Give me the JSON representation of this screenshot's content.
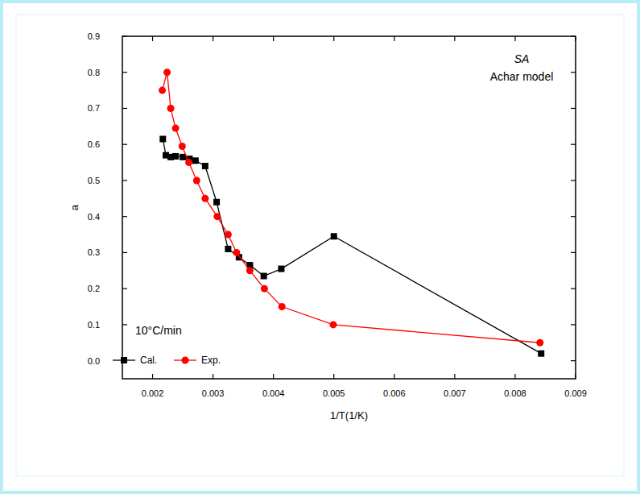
{
  "chart_data": {
    "type": "line",
    "x_label": "1/T(1/K)",
    "y_label": "a",
    "annotations": [
      "SA",
      "Achar model",
      "10°C/min"
    ],
    "xlim": [
      0.0015,
      0.009
    ],
    "xticks": [
      0.002,
      0.003,
      0.004,
      0.005,
      0.006,
      0.007,
      0.008,
      0.009
    ],
    "ylim": [
      -0.05,
      0.9
    ],
    "yticks": [
      {
        "value": 0,
        "label": "0.0"
      },
      0.1,
      0.2,
      0.3,
      0.4,
      0.5,
      0.6,
      0.7,
      0.8,
      0.9
    ],
    "grid": false,
    "legend": "lower left",
    "series": [
      {
        "name": "Cal.",
        "color": "#000000",
        "marker": "square",
        "line_style": "solid",
        "x": [
          0.00217,
          0.00222,
          0.0023,
          0.00238,
          0.0025,
          0.00261,
          0.00271,
          0.00287,
          0.00306,
          0.00325,
          0.00343,
          0.00361,
          0.00384,
          0.00413,
          0.005,
          0.00843
        ],
        "values": [
          0.615,
          0.57,
          0.565,
          0.567,
          0.565,
          0.56,
          0.555,
          0.54,
          0.44,
          0.31,
          0.287,
          0.265,
          0.235,
          0.255,
          0.345,
          0.02
        ]
      },
      {
        "name": "Exp.",
        "color": "#ff0000",
        "marker": "circle",
        "line_style": "solid",
        "x": [
          0.00216,
          0.00224,
          0.0023,
          0.00238,
          0.00249,
          0.0026,
          0.00273,
          0.00287,
          0.00307,
          0.00325,
          0.00339,
          0.00361,
          0.00385,
          0.00414,
          0.00499,
          0.00841
        ],
        "values": [
          0.75,
          0.8,
          0.7,
          0.645,
          0.595,
          0.55,
          0.5,
          0.45,
          0.4,
          0.35,
          0.3,
          0.25,
          0.2,
          0.15,
          0.1,
          0.05
        ]
      }
    ]
  }
}
